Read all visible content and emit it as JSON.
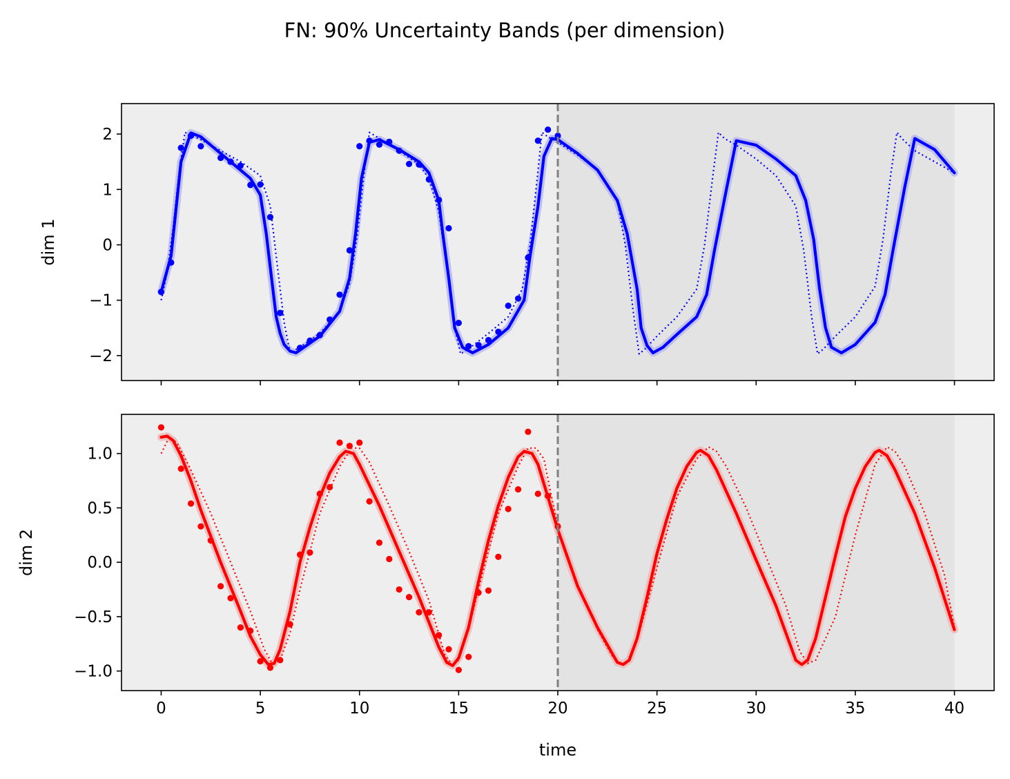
{
  "figure": {
    "title": "FN: 90% Uncertainty Bands (per dimension)",
    "xlabel": "time"
  },
  "chart_data": [
    {
      "type": "line",
      "panel": "top",
      "ylabel": "dim 1",
      "xlim": [
        -2,
        42
      ],
      "ylim": [
        -2.45,
        2.55
      ],
      "xticks": [
        0,
        5,
        10,
        15,
        20,
        25,
        30,
        35,
        40
      ],
      "yticks": [
        -2,
        -1,
        0,
        1,
        2
      ],
      "ytick_labels": [
        "−2",
        "−1",
        "0",
        "1",
        "2"
      ],
      "show_xtick_labels": false,
      "forecast_region": [
        20,
        40
      ],
      "split_time": 20,
      "colors": {
        "series": "#0000ff",
        "band": "#b9b9f0",
        "split_line": "#808080",
        "train_bg": "#eeeeee",
        "forecast_bg": "#e3e3e3"
      },
      "series": [
        {
          "kind": "mean",
          "x": [
            0,
            0.5,
            1,
            1.5,
            2,
            2.5,
            3,
            3.5,
            4,
            4.5,
            5,
            5.3,
            5.6,
            5.8,
            6,
            6.2,
            6.5,
            6.8,
            7.2,
            8,
            9,
            9.5,
            9.8,
            10.1,
            10.5,
            11,
            12,
            13,
            13.5,
            14,
            14.2,
            14.5,
            14.8,
            15.2,
            15.7,
            16.5,
            17.5,
            18.3,
            18.6,
            19,
            19.3,
            19.7,
            20,
            21,
            22,
            23,
            23.5,
            24,
            24.2,
            24.5,
            24.8,
            25.3,
            26,
            27,
            27.5,
            27.9,
            28.5,
            29,
            30,
            31,
            32,
            32.5,
            32.9,
            33.2,
            33.5,
            33.8,
            34.3,
            35,
            36,
            36.5,
            36.9,
            37.5,
            38,
            39,
            40
          ],
          "y": [
            -0.85,
            -0.2,
            1.5,
            2.02,
            1.95,
            1.8,
            1.65,
            1.5,
            1.35,
            1.2,
            0.9,
            0.2,
            -0.7,
            -1.3,
            -1.6,
            -1.8,
            -1.92,
            -1.95,
            -1.85,
            -1.65,
            -1.2,
            -0.6,
            0.2,
            1.2,
            1.85,
            1.9,
            1.72,
            1.5,
            1.3,
            0.8,
            0.2,
            -0.6,
            -1.5,
            -1.85,
            -1.95,
            -1.8,
            -1.5,
            -1.0,
            -0.2,
            0.7,
            1.6,
            1.92,
            1.9,
            1.65,
            1.35,
            0.8,
            0.2,
            -0.8,
            -1.5,
            -1.82,
            -1.95,
            -1.85,
            -1.62,
            -1.3,
            -0.9,
            -0.1,
            1.0,
            1.88,
            1.8,
            1.55,
            1.25,
            0.8,
            0.1,
            -0.8,
            -1.5,
            -1.85,
            -1.95,
            -1.8,
            -1.4,
            -0.9,
            -0.1,
            1.05,
            1.92,
            1.72,
            1.3
          ]
        },
        {
          "kind": "true",
          "x": [
            0,
            0.3,
            0.6,
            0.9,
            1.2,
            2,
            3,
            4,
            5,
            5.5,
            5.9,
            6.2,
            6.5,
            7,
            8,
            9,
            9.5,
            9.9,
            10.2,
            10.5,
            11,
            12,
            13,
            13.5,
            14,
            14.4,
            14.8,
            15.1,
            15.5,
            16.5,
            17.5,
            18.2,
            18.6,
            18.9,
            19.2,
            19.5,
            20,
            21,
            22,
            23,
            23.4,
            23.8,
            24.1,
            24.4,
            25,
            26,
            27,
            27.4,
            27.8,
            28.1,
            28.4,
            29,
            30,
            31,
            32,
            32.4,
            32.8,
            33.1,
            33.4,
            34,
            35,
            36,
            36.4,
            36.8,
            37.1,
            37.4,
            38,
            39,
            40
          ],
          "y": [
            -1.0,
            -0.5,
            0.3,
            1.3,
            2.03,
            1.9,
            1.7,
            1.5,
            1.25,
            0.7,
            -0.5,
            -1.4,
            -1.95,
            -1.85,
            -1.6,
            -1.2,
            -0.7,
            0.2,
            1.2,
            2.03,
            1.92,
            1.7,
            1.45,
            1.2,
            0.6,
            -0.4,
            -1.5,
            -1.97,
            -1.88,
            -1.6,
            -1.3,
            -0.8,
            0.0,
            1.0,
            2.03,
            1.95,
            1.85,
            1.62,
            1.35,
            0.8,
            0.0,
            -1.2,
            -1.97,
            -1.88,
            -1.65,
            -1.3,
            -0.8,
            0.0,
            1.2,
            2.03,
            1.92,
            1.8,
            1.55,
            1.25,
            0.7,
            -0.1,
            -1.3,
            -1.97,
            -1.88,
            -1.65,
            -1.3,
            -0.75,
            0.1,
            1.3,
            2.03,
            1.9,
            1.7,
            1.5,
            1.3
          ]
        },
        {
          "kind": "observations",
          "x": [
            0,
            0.5,
            1,
            1.5,
            2,
            3,
            3.5,
            4,
            4.5,
            5,
            5.5,
            6,
            7,
            7.5,
            8,
            8.5,
            9,
            9.5,
            10,
            10.5,
            11,
            11.5,
            12,
            12.5,
            13,
            13.5,
            14,
            14.5,
            15,
            15.5,
            16,
            16.5,
            17,
            17.5,
            18,
            18.5,
            19,
            19.5,
            20
          ],
          "y": [
            -0.85,
            -0.32,
            1.75,
            1.97,
            1.78,
            1.57,
            1.5,
            1.43,
            1.08,
            1.09,
            0.5,
            -1.23,
            -1.86,
            -1.73,
            -1.63,
            -1.35,
            -0.9,
            -0.1,
            1.78,
            1.88,
            1.81,
            1.86,
            1.7,
            1.46,
            1.45,
            1.18,
            0.81,
            0.3,
            -1.41,
            -1.83,
            -1.81,
            -1.72,
            -1.57,
            -1.1,
            -0.97,
            -0.23,
            1.88,
            2.08,
            1.97
          ]
        }
      ]
    },
    {
      "type": "line",
      "panel": "bottom",
      "ylabel": "dim 2",
      "xlim": [
        -2,
        42
      ],
      "ylim": [
        -1.18,
        1.36
      ],
      "xticks": [
        0,
        5,
        10,
        15,
        20,
        25,
        30,
        35,
        40
      ],
      "xtick_labels": [
        "0",
        "5",
        "10",
        "15",
        "20",
        "25",
        "30",
        "35",
        "40"
      ],
      "yticks": [
        -1.0,
        -0.5,
        0.0,
        0.5,
        1.0
      ],
      "ytick_labels": [
        "−1.0",
        "−0.5",
        "0.0",
        "0.5",
        "1.0"
      ],
      "show_xtick_labels": true,
      "forecast_region": [
        20,
        40
      ],
      "split_time": 20,
      "colors": {
        "series": "#ff0000",
        "band": "#f0b9b9",
        "split_line": "#808080",
        "train_bg": "#eeeeee",
        "forecast_bg": "#e3e3e3"
      },
      "series": [
        {
          "kind": "mean",
          "x": [
            0,
            0.3,
            0.6,
            1,
            1.5,
            2,
            3,
            4,
            4.5,
            5,
            5.4,
            5.7,
            6,
            6.5,
            7,
            7.5,
            8,
            8.5,
            9,
            9.3,
            9.7,
            10,
            11,
            12,
            13,
            14,
            14.4,
            14.7,
            15,
            15.5,
            16,
            16.5,
            17,
            17.5,
            18,
            18.3,
            18.7,
            19,
            20,
            21,
            22,
            23,
            23.3,
            23.6,
            24,
            24.5,
            25,
            25.5,
            26,
            26.5,
            27,
            27.2,
            27.6,
            28,
            29,
            30,
            31,
            32,
            32.3,
            32.6,
            33,
            33.5,
            34,
            34.5,
            35,
            35.5,
            36,
            36.2,
            36.6,
            37,
            38,
            39,
            40
          ],
          "y": [
            1.15,
            1.16,
            1.12,
            0.98,
            0.75,
            0.48,
            0.0,
            -0.45,
            -0.68,
            -0.85,
            -0.94,
            -0.93,
            -0.8,
            -0.45,
            0.0,
            0.32,
            0.6,
            0.82,
            0.97,
            1.02,
            1.0,
            0.9,
            0.52,
            0.1,
            -0.32,
            -0.78,
            -0.92,
            -0.95,
            -0.88,
            -0.6,
            -0.18,
            0.2,
            0.52,
            0.78,
            0.97,
            1.02,
            1.0,
            0.9,
            0.3,
            -0.22,
            -0.6,
            -0.92,
            -0.94,
            -0.9,
            -0.7,
            -0.32,
            0.08,
            0.4,
            0.68,
            0.88,
            1.01,
            1.03,
            0.98,
            0.85,
            0.45,
            0.02,
            -0.4,
            -0.9,
            -0.94,
            -0.9,
            -0.7,
            -0.32,
            0.06,
            0.42,
            0.68,
            0.88,
            1.01,
            1.03,
            0.98,
            0.85,
            0.45,
            -0.05,
            -0.62
          ]
        },
        {
          "kind": "true",
          "x": [
            0,
            0.4,
            0.8,
            1.5,
            2.5,
            3.5,
            4.5,
            5.2,
            5.6,
            6,
            6.5,
            7,
            8,
            9,
            9.6,
            10,
            10.5,
            11.5,
            12.5,
            13.5,
            14.3,
            14.7,
            15,
            15.5,
            16,
            17,
            18,
            18.5,
            18.9,
            19.3,
            20,
            21,
            22,
            22.8,
            23.2,
            23.6,
            24,
            25,
            26,
            27,
            27.6,
            28,
            28.5,
            29.5,
            30.5,
            31.5,
            32.2,
            32.6,
            33,
            34,
            35,
            36,
            36.6,
            37,
            37.5,
            38.5,
            39.5,
            40
          ],
          "y": [
            1.0,
            1.15,
            1.1,
            0.85,
            0.45,
            0.0,
            -0.45,
            -0.8,
            -0.93,
            -0.9,
            -0.65,
            -0.25,
            0.45,
            0.88,
            1.05,
            1.05,
            0.92,
            0.52,
            0.1,
            -0.35,
            -0.85,
            -0.95,
            -0.9,
            -0.62,
            -0.25,
            0.45,
            0.88,
            1.05,
            1.05,
            0.95,
            0.32,
            -0.2,
            -0.62,
            -0.88,
            -0.94,
            -0.9,
            -0.72,
            -0.05,
            0.6,
            0.95,
            1.06,
            1.02,
            0.88,
            0.5,
            0.05,
            -0.4,
            -0.82,
            -0.93,
            -0.9,
            -0.5,
            0.25,
            0.9,
            1.06,
            1.02,
            0.88,
            0.45,
            -0.12,
            -0.6
          ]
        },
        {
          "kind": "observations",
          "x": [
            0,
            1,
            1.5,
            2,
            2.5,
            3,
            3.5,
            4,
            4.5,
            5,
            5.5,
            6,
            6.5,
            7,
            7.5,
            8,
            8.5,
            9,
            9.5,
            10,
            10.5,
            11,
            11.5,
            12,
            12.5,
            13,
            13.5,
            14,
            14.5,
            15,
            15.5,
            16,
            16.5,
            17,
            17.5,
            18,
            18.5,
            19,
            19.5,
            20
          ],
          "y": [
            1.24,
            0.86,
            0.54,
            0.33,
            0.2,
            -0.22,
            -0.33,
            -0.6,
            -0.63,
            -0.91,
            -0.97,
            -0.9,
            -0.57,
            0.07,
            0.09,
            0.63,
            0.69,
            1.1,
            1.07,
            1.1,
            0.56,
            0.18,
            0.03,
            -0.25,
            -0.32,
            -0.46,
            -0.46,
            -0.67,
            -0.8,
            -0.99,
            -0.87,
            -0.28,
            -0.26,
            0.05,
            0.49,
            0.67,
            1.2,
            0.63,
            0.61,
            0.33
          ]
        }
      ]
    }
  ]
}
